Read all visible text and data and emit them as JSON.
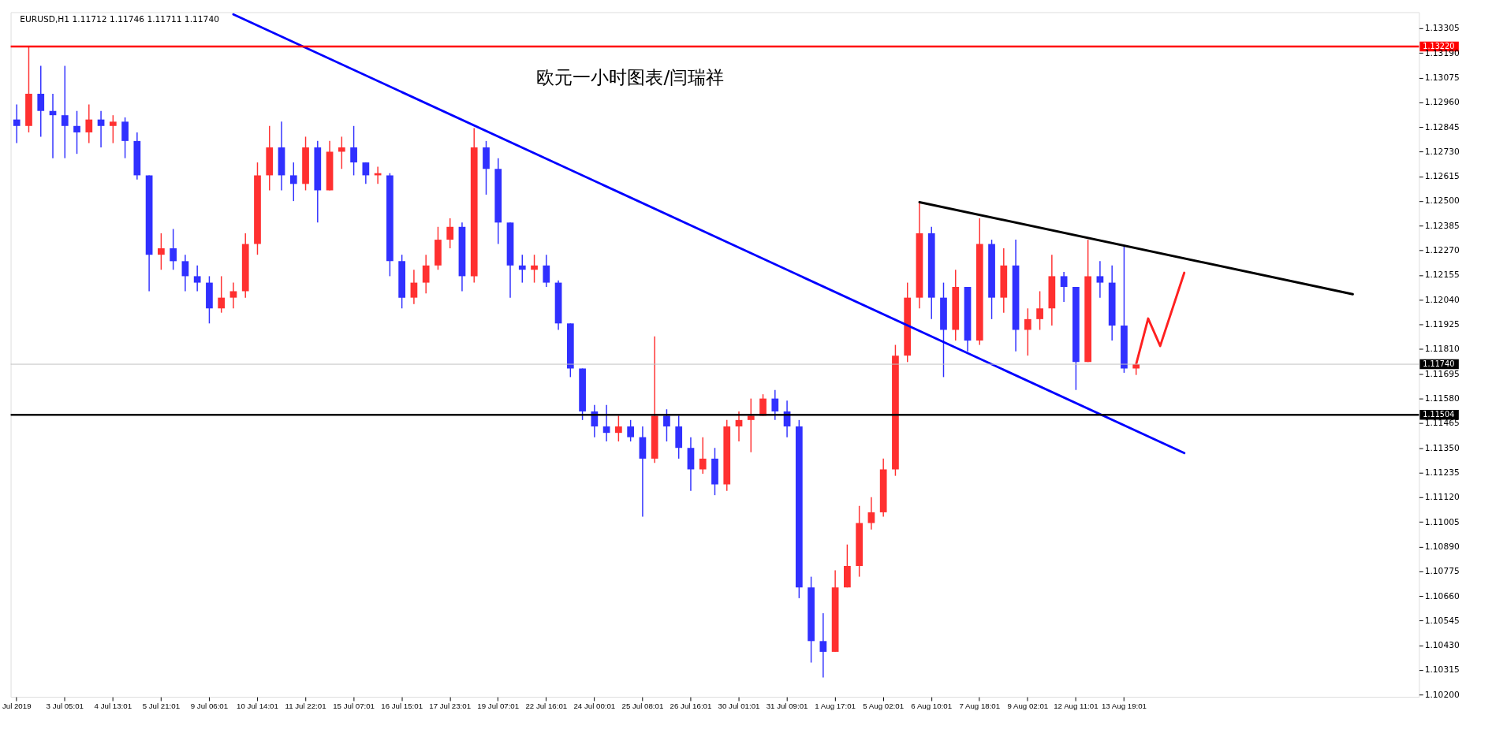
{
  "chart_data": {
    "type": "candlestick",
    "title": "欧元一小时图表/闫瑞祥",
    "subtitle": "EURUSD,H1  1.11712 1.11746 1.11711 1.11740",
    "categories": [
      "Jul 2019",
      null,
      null,
      null,
      "3 Jul 05:01",
      null,
      null,
      null,
      "4 Jul 13:01",
      null,
      null,
      null,
      "5 Jul 21:01",
      null,
      null,
      null,
      "9 Jul 06:01",
      null,
      null,
      null,
      "10 Jul 14:01",
      null,
      null,
      null,
      "11 Jul 22:01",
      null,
      null,
      null,
      "15 Jul 07:01",
      null,
      null,
      null,
      "16 Jul 15:01",
      null,
      null,
      null,
      "17 Jul 23:01",
      null,
      null,
      null,
      "19 Jul 07:01",
      null,
      null,
      null,
      "22 Jul 16:01",
      null,
      null,
      null,
      "24 Jul 00:01",
      null,
      null,
      null,
      "25 Jul 08:01",
      null,
      null,
      null,
      "26 Jul 16:01",
      null,
      null,
      null,
      "30 Jul 01:01",
      null,
      null,
      null,
      "31 Jul 09:01",
      null,
      null,
      null,
      "1 Aug 17:01",
      null,
      null,
      null,
      "5 Aug 02:01",
      null,
      null,
      null,
      "6 Aug 10:01",
      null,
      null,
      null,
      "7 Aug 18:01",
      null,
      null,
      null,
      "9 Aug 02:01",
      null,
      null,
      null,
      "12 Aug 11:01",
      null,
      null,
      null,
      "13 Aug 19:01",
      null,
      null,
      null,
      null,
      null,
      null,
      null,
      null,
      null,
      null,
      null,
      null,
      null,
      null,
      null,
      null,
      null,
      null,
      null,
      null,
      null,
      null,
      null,
      null
    ],
    "ylim": [
      1.1019,
      1.1338
    ],
    "yticks": [
      1.13305,
      {
        "value": 1.1319,
        "label": "1.13190"
      },
      1.13075,
      {
        "value": 1.1296,
        "label": "1.12960"
      },
      1.12845,
      {
        "value": 1.1273,
        "label": "1.12730"
      },
      1.12615,
      {
        "value": 1.125,
        "label": "1.12500"
      },
      1.12385,
      {
        "value": 1.1227,
        "label": "1.12270"
      },
      1.12155,
      {
        "value": 1.1204,
        "label": "1.12040"
      },
      1.11925,
      {
        "value": 1.1181,
        "label": "1.11810"
      },
      1.11695,
      {
        "value": 1.1158,
        "label": "1.11580"
      },
      1.11465,
      {
        "value": 1.1135,
        "label": "1.11350"
      },
      1.11235,
      {
        "value": 1.1112,
        "label": "1.11120"
      },
      1.11005,
      {
        "value": 1.1089,
        "label": "1.10890"
      },
      1.10775,
      {
        "value": 1.1066,
        "label": "1.10660"
      },
      1.10545,
      {
        "value": 1.1043,
        "label": "1.10430"
      },
      1.10315,
      {
        "value": 1.102,
        "label": "1.10200"
      }
    ],
    "ref_lines": [
      {
        "axis": "y",
        "value": 1.1322,
        "label": "1.13220",
        "color": "#ff0000"
      },
      {
        "axis": "y",
        "value": 1.11504,
        "label": "1.11504",
        "color": "#000000"
      },
      {
        "axis": "y",
        "value": 1.1174,
        "label": "1.11740",
        "color": "#c0c0c0"
      }
    ],
    "series": [
      {
        "ohlc": [
          [
            1.1288,
            1.1295,
            1.1277,
            1.1285
          ],
          [
            1.1285,
            1.1322,
            1.1282,
            1.13
          ],
          [
            1.13,
            1.1313,
            1.128,
            1.1292
          ],
          [
            1.1292,
            1.13,
            1.127,
            1.129
          ],
          [
            1.129,
            1.1313,
            1.127,
            1.1285
          ],
          [
            1.1285,
            1.1292,
            1.1272,
            1.1282
          ],
          [
            1.1282,
            1.1295,
            1.1277,
            1.1288
          ],
          [
            1.1288,
            1.1292,
            1.1275,
            1.1285
          ],
          [
            1.1285,
            1.129,
            1.1277,
            1.1287
          ],
          [
            1.1287,
            1.1289,
            1.127,
            1.1278
          ],
          [
            1.1278,
            1.1282,
            1.126,
            1.1262
          ],
          [
            1.1262,
            1.1262,
            1.1208,
            1.1225
          ],
          [
            1.1225,
            1.1235,
            1.1218,
            1.1228
          ],
          [
            1.1228,
            1.1237,
            1.1218,
            1.1222
          ],
          [
            1.1222,
            1.1225,
            1.1208,
            1.1215
          ],
          [
            1.1215,
            1.122,
            1.1208,
            1.1212
          ],
          [
            1.1212,
            1.1215,
            1.1193,
            1.12
          ],
          [
            1.12,
            1.1215,
            1.1198,
            1.1205
          ],
          [
            1.1205,
            1.1212,
            1.12,
            1.1208
          ],
          [
            1.1208,
            1.1235,
            1.1205,
            1.123
          ],
          [
            1.123,
            1.1268,
            1.1225,
            1.1262
          ],
          [
            1.1262,
            1.1285,
            1.1255,
            1.1275
          ],
          [
            1.1275,
            1.1287,
            1.1255,
            1.1262
          ],
          [
            1.1262,
            1.1268,
            1.125,
            1.1258
          ],
          [
            1.1258,
            1.128,
            1.1255,
            1.1275
          ],
          [
            1.1275,
            1.1278,
            1.124,
            1.1255
          ],
          [
            1.1255,
            1.1278,
            1.1255,
            1.1273
          ],
          [
            1.1273,
            1.128,
            1.1265,
            1.1275
          ],
          [
            1.1275,
            1.1285,
            1.1262,
            1.1268
          ],
          [
            1.1268,
            1.1268,
            1.1258,
            1.1262
          ],
          [
            1.1262,
            1.1266,
            1.1258,
            1.1263
          ],
          [
            1.1262,
            1.1263,
            1.1215,
            1.1222
          ],
          [
            1.1222,
            1.1225,
            1.12,
            1.1205
          ],
          [
            1.1205,
            1.1218,
            1.1202,
            1.1212
          ],
          [
            1.1212,
            1.1225,
            1.1207,
            1.122
          ],
          [
            1.122,
            1.1238,
            1.1218,
            1.1232
          ],
          [
            1.1232,
            1.1242,
            1.1228,
            1.1238
          ],
          [
            1.1238,
            1.124,
            1.1208,
            1.1215
          ],
          [
            1.1215,
            1.1284,
            1.1212,
            1.1275
          ],
          [
            1.1275,
            1.1278,
            1.1253,
            1.1265
          ],
          [
            1.1265,
            1.127,
            1.123,
            1.124
          ],
          [
            1.124,
            1.124,
            1.1205,
            1.122
          ],
          [
            1.122,
            1.1225,
            1.1212,
            1.1218
          ],
          [
            1.1218,
            1.1225,
            1.1212,
            1.122
          ],
          [
            1.122,
            1.1225,
            1.121,
            1.1212
          ],
          [
            1.1212,
            1.1213,
            1.119,
            1.1193
          ],
          [
            1.1193,
            1.1193,
            1.1168,
            1.1172
          ],
          [
            1.1172,
            1.1172,
            1.1148,
            1.1152
          ],
          [
            1.1152,
            1.1155,
            1.114,
            1.1145
          ],
          [
            1.1145,
            1.1155,
            1.1138,
            1.1142
          ],
          [
            1.1142,
            1.115,
            1.1138,
            1.1145
          ],
          [
            1.1145,
            1.1148,
            1.1138,
            1.114
          ],
          [
            1.114,
            1.1145,
            1.1103,
            1.113
          ],
          [
            1.113,
            1.1187,
            1.1128,
            1.115
          ],
          [
            1.115,
            1.1153,
            1.1138,
            1.1145
          ],
          [
            1.1145,
            1.115,
            1.113,
            1.1135
          ],
          [
            1.1135,
            1.114,
            1.1115,
            1.1125
          ],
          [
            1.1125,
            1.114,
            1.1123,
            1.113
          ],
          [
            1.113,
            1.1135,
            1.1113,
            1.1118
          ],
          [
            1.1118,
            1.1148,
            1.1115,
            1.1145
          ],
          [
            1.1145,
            1.1152,
            1.1138,
            1.1148
          ],
          [
            1.1148,
            1.1158,
            1.1133,
            1.115
          ],
          [
            1.115,
            1.116,
            1.115,
            1.1158
          ],
          [
            1.1158,
            1.1162,
            1.1148,
            1.1152
          ],
          [
            1.1152,
            1.1157,
            1.114,
            1.1145
          ],
          [
            1.1145,
            1.1148,
            1.1065,
            1.107
          ],
          [
            1.107,
            1.1075,
            1.1035,
            1.1045
          ],
          [
            1.1045,
            1.1058,
            1.1028,
            1.104
          ],
          [
            1.104,
            1.1078,
            1.104,
            1.107
          ],
          [
            1.107,
            1.109,
            1.107,
            1.108
          ],
          [
            1.108,
            1.1108,
            1.1075,
            1.11
          ],
          [
            1.11,
            1.1112,
            1.1097,
            1.1105
          ],
          [
            1.1105,
            1.113,
            1.1103,
            1.1125
          ],
          [
            1.1125,
            1.1183,
            1.1122,
            1.1178
          ],
          [
            1.1178,
            1.1212,
            1.1175,
            1.1205
          ],
          [
            1.1205,
            1.125,
            1.12,
            1.1235
          ],
          [
            1.1235,
            1.1238,
            1.1195,
            1.1205
          ],
          [
            1.1205,
            1.1212,
            1.1168,
            1.119
          ],
          [
            1.119,
            1.1218,
            1.1185,
            1.121
          ],
          [
            1.121,
            1.121,
            1.118,
            1.1185
          ],
          [
            1.1185,
            1.1242,
            1.1183,
            1.123
          ],
          [
            1.123,
            1.1232,
            1.1195,
            1.1205
          ],
          [
            1.1205,
            1.1228,
            1.1198,
            1.122
          ],
          [
            1.122,
            1.1232,
            1.118,
            1.119
          ],
          [
            1.119,
            1.12,
            1.1178,
            1.1195
          ],
          [
            1.1195,
            1.1208,
            1.119,
            1.12
          ],
          [
            1.12,
            1.1225,
            1.1192,
            1.1215
          ],
          [
            1.1215,
            1.1217,
            1.1203,
            1.121
          ],
          [
            1.121,
            1.121,
            1.1162,
            1.1175
          ],
          [
            1.1175,
            1.1232,
            1.1175,
            1.1215
          ],
          [
            1.1215,
            1.1222,
            1.1205,
            1.1212
          ],
          [
            1.1212,
            1.122,
            1.1185,
            1.1192
          ],
          [
            1.1192,
            1.1229,
            1.117,
            1.1172
          ],
          [
            1.1172,
            1.1175,
            1.1169,
            1.1174
          ],
          null,
          null,
          null,
          null,
          null,
          null,
          null,
          null,
          null,
          null,
          null,
          null,
          null,
          null,
          null,
          null,
          null,
          null,
          null,
          null,
          null,
          null,
          null
        ],
        "colors": [
          "#3030ff",
          "#ff3030",
          "#3030ff",
          "#3030ff",
          "#3030ff",
          "#3030ff",
          "#ff3030",
          "#3030ff",
          "#ff3030",
          "#3030ff",
          "#3030ff",
          "#3030ff",
          "#ff3030",
          "#3030ff",
          "#3030ff",
          "#3030ff",
          "#3030ff",
          "#ff3030",
          "#ff3030",
          "#ff3030",
          "#ff3030",
          "#ff3030",
          "#3030ff",
          "#3030ff",
          "#ff3030",
          "#3030ff",
          "#ff3030",
          "#ff3030",
          "#3030ff",
          "#3030ff",
          "#ff3030",
          "#3030ff",
          "#3030ff",
          "#ff3030",
          "#ff3030",
          "#ff3030",
          "#ff3030",
          "#3030ff",
          "#ff3030",
          "#3030ff",
          "#3030ff",
          "#3030ff",
          "#3030ff",
          "#ff3030",
          "#3030ff",
          "#3030ff",
          "#3030ff",
          "#3030ff",
          "#3030ff",
          "#3030ff",
          "#ff3030",
          "#3030ff",
          "#3030ff",
          "#ff3030",
          "#3030ff",
          "#3030ff",
          "#3030ff",
          "#ff3030",
          "#3030ff",
          "#ff3030",
          "#ff3030",
          "#ff3030",
          "#ff3030",
          "#3030ff",
          "#3030ff",
          "#3030ff",
          "#3030ff",
          "#3030ff",
          "#ff3030",
          "#ff3030",
          "#ff3030",
          "#ff3030",
          "#ff3030",
          "#ff3030",
          "#ff3030",
          "#ff3030",
          "#3030ff",
          "#3030ff",
          "#ff3030",
          "#3030ff",
          "#ff3030",
          "#3030ff",
          "#ff3030",
          "#3030ff",
          "#ff3030",
          "#ff3030",
          "#ff3030",
          "#3030ff",
          "#3030ff",
          "#ff3030",
          "#3030ff",
          "#3030ff",
          "#3030ff",
          "#ff3030",
          null,
          null,
          null,
          null,
          null,
          null,
          null,
          null,
          null,
          null,
          null,
          null,
          null,
          null,
          null,
          null,
          null,
          null,
          null,
          null,
          null,
          null,
          null
        ]
      },
      {
        "type": "line",
        "color": "#0000ff",
        "values": [
          null,
          null,
          null,
          null,
          null,
          null,
          null,
          null,
          null,
          null,
          null,
          null,
          null,
          null,
          null,
          null,
          null,
          null,
          1.1337,
          null,
          null,
          null,
          null,
          null,
          null,
          null,
          null,
          null,
          null,
          null,
          null,
          null,
          null,
          null,
          null,
          null,
          null,
          null,
          null,
          null,
          null,
          null,
          null,
          null,
          null,
          null,
          null,
          null,
          null,
          null,
          null,
          null,
          null,
          null,
          null,
          null,
          null,
          null,
          null,
          null,
          null,
          null,
          null,
          null,
          null,
          null,
          null,
          null,
          null,
          null,
          null,
          null,
          null,
          null,
          null,
          null,
          null,
          null,
          null,
          null,
          null,
          null,
          null,
          null,
          null,
          null,
          null,
          null,
          null,
          null,
          null,
          null,
          null,
          null,
          null,
          null,
          null,
          1.11326,
          null,
          null,
          null,
          null,
          null,
          null,
          null,
          null,
          null,
          null,
          null,
          null,
          null,
          null,
          null,
          null,
          null,
          null,
          null
        ]
      },
      {
        "type": "line",
        "color": "#000000",
        "values": [
          null,
          null,
          null,
          null,
          null,
          null,
          null,
          null,
          null,
          null,
          null,
          null,
          null,
          null,
          null,
          null,
          null,
          null,
          null,
          null,
          null,
          null,
          null,
          null,
          null,
          null,
          null,
          null,
          null,
          null,
          null,
          null,
          null,
          null,
          null,
          null,
          null,
          null,
          null,
          null,
          null,
          null,
          null,
          null,
          null,
          null,
          null,
          null,
          null,
          null,
          null,
          null,
          null,
          null,
          null,
          null,
          null,
          null,
          null,
          null,
          null,
          null,
          null,
          null,
          null,
          null,
          null,
          null,
          null,
          null,
          null,
          null,
          null,
          null,
          null,
          1.12495,
          null,
          null,
          null,
          null,
          null,
          null,
          null,
          null,
          null,
          null,
          null,
          null,
          null,
          null,
          null,
          null,
          null,
          null,
          null,
          null,
          null,
          null,
          null,
          null,
          null,
          null,
          null,
          null,
          null,
          null,
          null,
          null,
          null,
          null,
          null,
          1.12066,
          null,
          null,
          null,
          null,
          null
        ]
      },
      {
        "type": "line",
        "color": "#ff2020",
        "values": [
          null,
          null,
          null,
          null,
          null,
          null,
          null,
          null,
          null,
          null,
          null,
          null,
          null,
          null,
          null,
          null,
          null,
          null,
          null,
          null,
          null,
          null,
          null,
          null,
          null,
          null,
          null,
          null,
          null,
          null,
          null,
          null,
          null,
          null,
          null,
          null,
          null,
          null,
          null,
          null,
          null,
          null,
          null,
          null,
          null,
          null,
          null,
          null,
          null,
          null,
          null,
          null,
          null,
          null,
          null,
          null,
          null,
          null,
          null,
          null,
          null,
          null,
          null,
          null,
          null,
          null,
          null,
          null,
          null,
          null,
          null,
          null,
          null,
          null,
          null,
          null,
          null,
          null,
          null,
          null,
          null,
          null,
          null,
          null,
          null,
          null,
          null,
          null,
          null,
          null,
          null,
          null,
          null,
          1.1174,
          1.11953,
          1.11825,
          null,
          1.12166,
          null,
          null,
          null,
          null,
          null,
          null,
          null,
          null,
          null,
          null,
          null,
          null,
          null,
          null,
          null,
          null,
          null,
          null,
          null
        ]
      }
    ]
  }
}
